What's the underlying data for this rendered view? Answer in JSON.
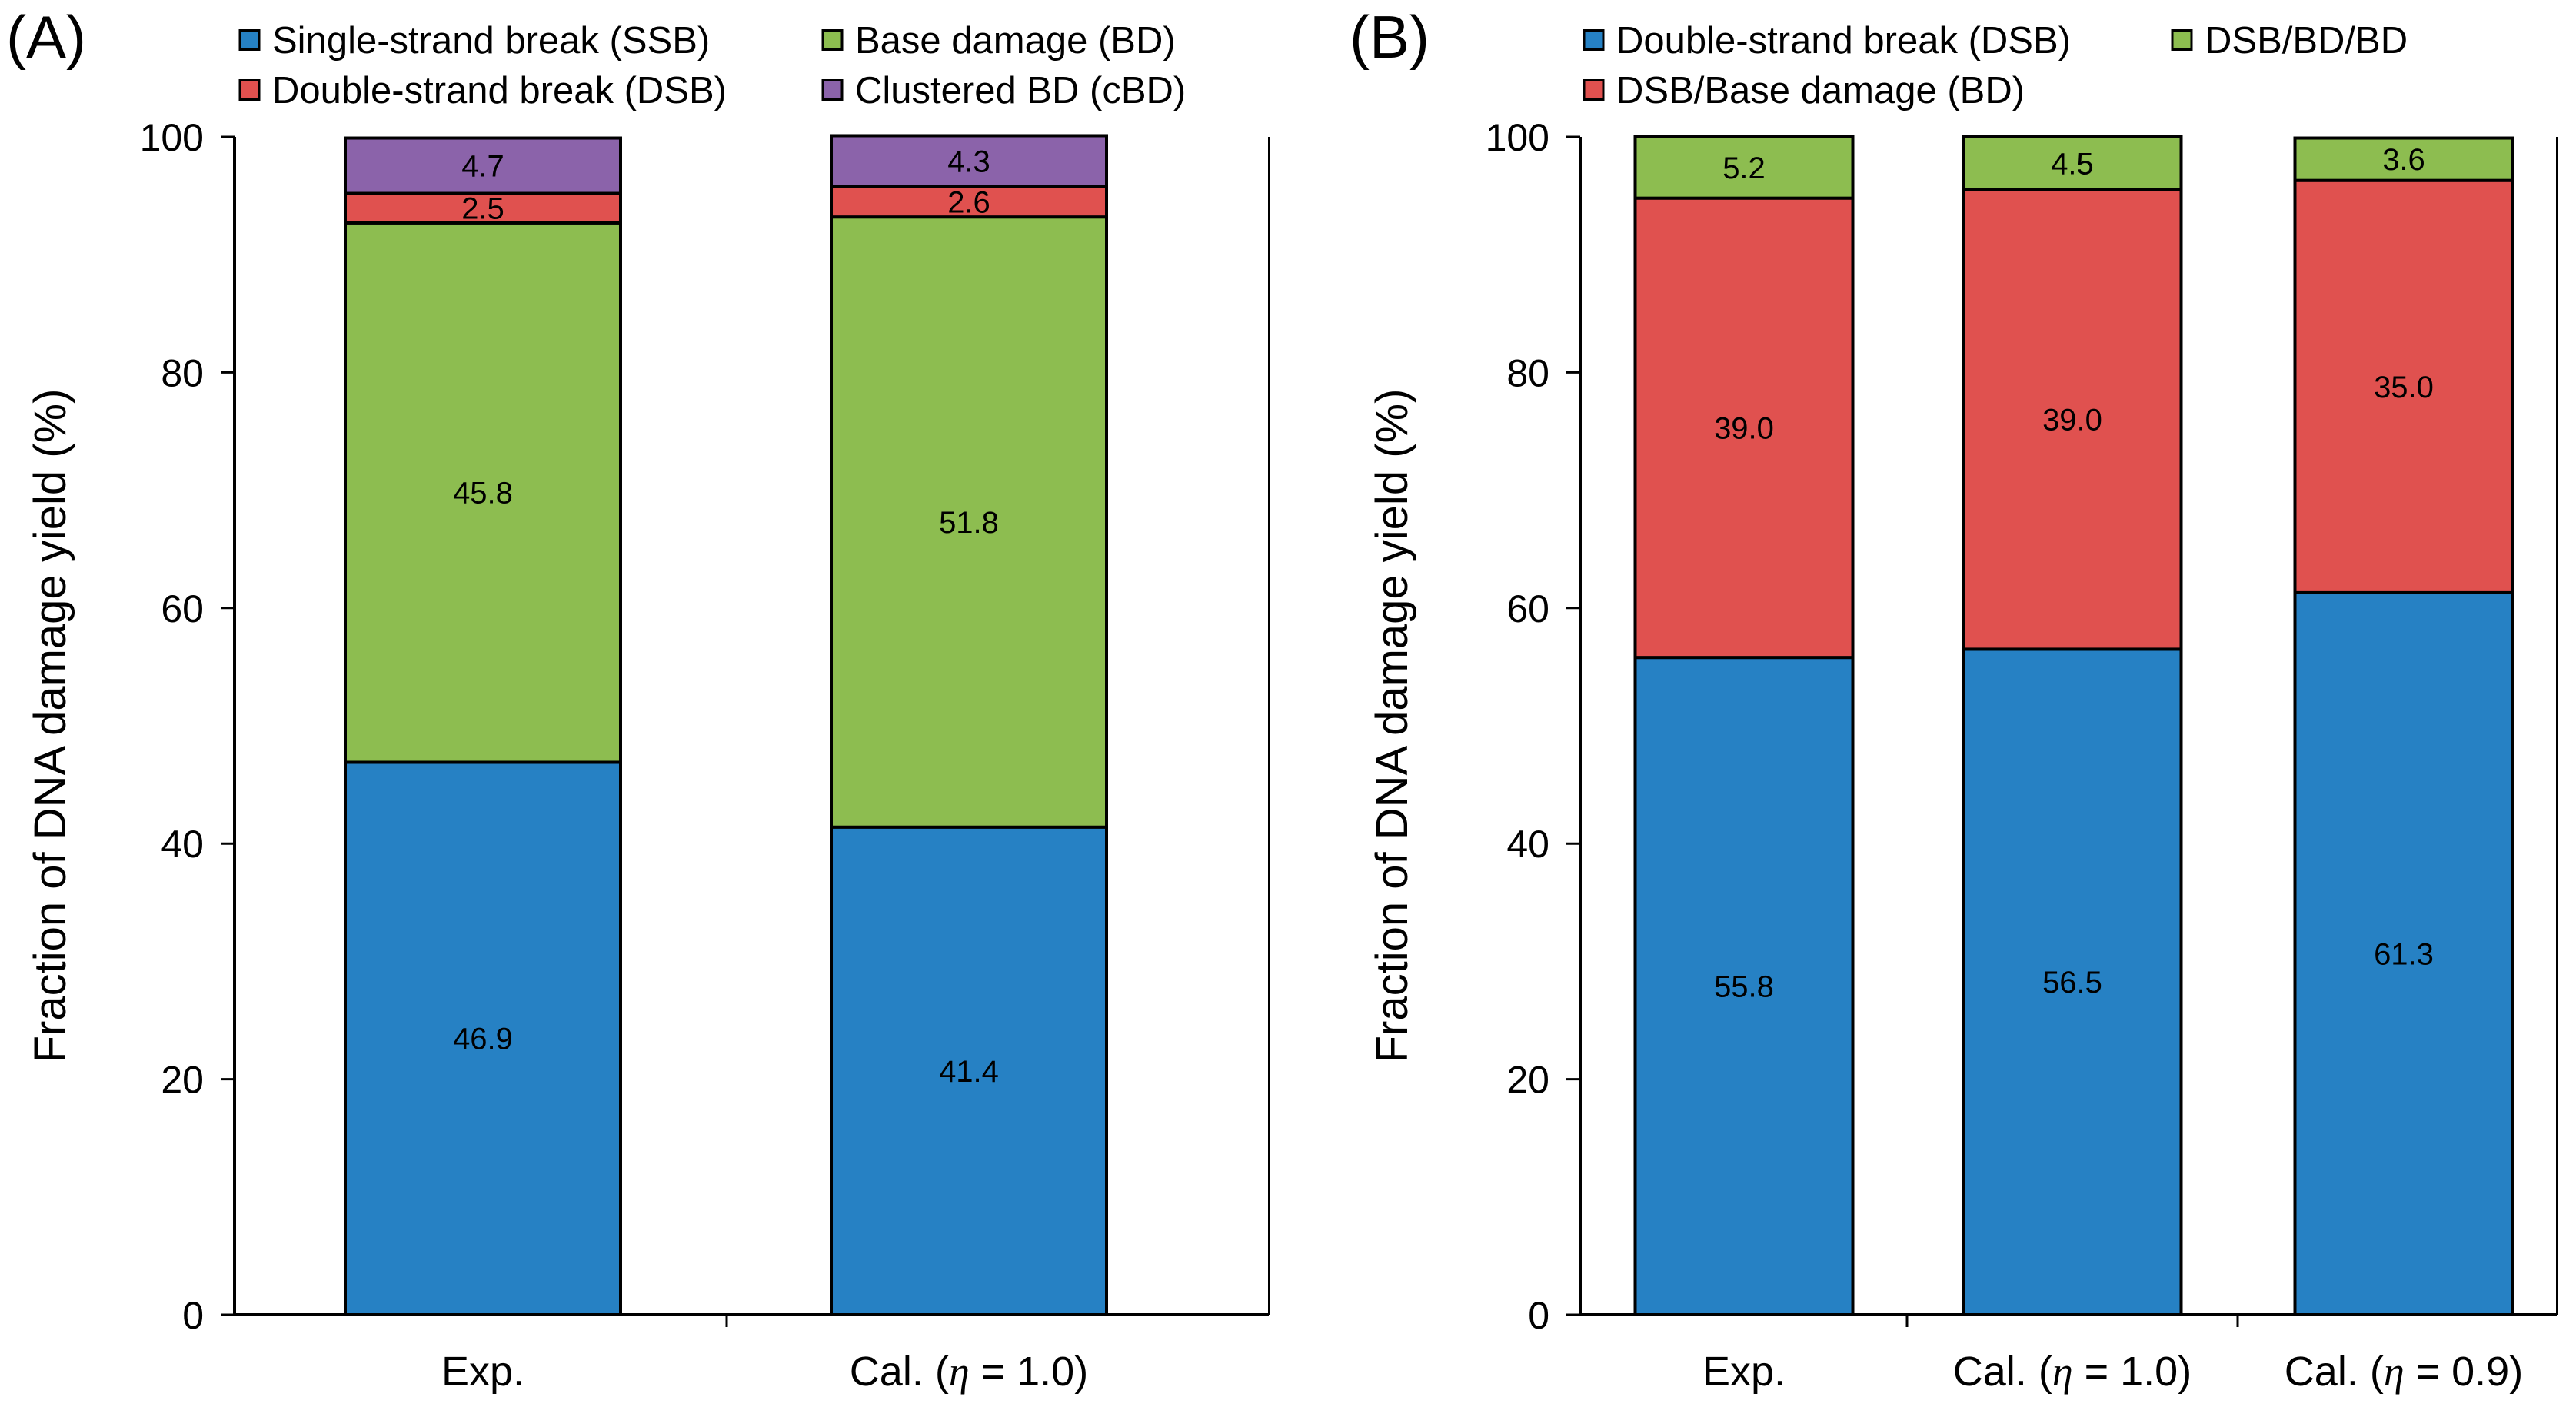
{
  "chart_data": [
    {
      "type": "bar",
      "stacked": true,
      "panel_label": "(A)",
      "ylabel": "Fraction of DNA damage yield (%)",
      "ylim": [
        0,
        100
      ],
      "yticks": [
        0,
        20,
        40,
        60,
        80,
        100
      ],
      "categories": [
        {
          "text": "Exp.",
          "pre": "Exp.",
          "eta": "",
          "post": ""
        },
        {
          "text": "Cal. (η = 1.0)",
          "pre": "Cal. (",
          "eta": "η",
          "post": " = 1.0)"
        }
      ],
      "series": [
        {
          "name": "Single-strand break (SSB)",
          "color": "#2681c4",
          "values": [
            46.9,
            41.4
          ],
          "labels": [
            "46.9",
            "41.4"
          ]
        },
        {
          "name": "Base damage (BD)",
          "color": "#8dbd50",
          "values": [
            45.8,
            51.8
          ],
          "labels": [
            "45.8",
            "51.8"
          ]
        },
        {
          "name": "Double-strand break (DSB)",
          "color": "#e0514f",
          "values": [
            2.5,
            2.6
          ],
          "labels": [
            "2.5",
            "2.6"
          ]
        },
        {
          "name": "Clustered BD (cBD)",
          "color": "#8b63aa",
          "values": [
            4.7,
            4.3
          ],
          "labels": [
            "4.7",
            "4.3"
          ]
        }
      ],
      "legend_rows": [
        [
          "Single-strand break (SSB)",
          "Base damage (BD)"
        ],
        [
          "Double-strand break (DSB)",
          "Clustered BD (cBD)"
        ]
      ]
    },
    {
      "type": "bar",
      "stacked": true,
      "panel_label": "(B)",
      "ylabel": "Fraction of DNA damage yield (%)",
      "ylim": [
        0,
        100
      ],
      "yticks": [
        0,
        20,
        40,
        60,
        80,
        100
      ],
      "categories": [
        {
          "text": "Exp.",
          "pre": "Exp.",
          "eta": "",
          "post": ""
        },
        {
          "text": "Cal. (η = 1.0)",
          "pre": "Cal. (",
          "eta": "η",
          "post": " = 1.0)"
        },
        {
          "text": "Cal. (η = 0.9)",
          "pre": "Cal. (",
          "eta": "η",
          "post": " = 0.9)"
        }
      ],
      "series": [
        {
          "name": "Double-strand break (DSB)",
          "color": "#2681c4",
          "values": [
            55.8,
            56.5,
            61.3
          ],
          "labels": [
            "55.8",
            "56.5",
            "61.3"
          ]
        },
        {
          "name": "DSB/Base damage (BD)",
          "color": "#e0514f",
          "values": [
            39.0,
            39.0,
            35.0
          ],
          "labels": [
            "39.0",
            "39.0",
            "35.0"
          ]
        },
        {
          "name": "DSB/BD/BD",
          "color": "#8dbd50",
          "values": [
            5.2,
            4.5,
            3.6
          ],
          "labels": [
            "5.2",
            "4.5",
            "3.6"
          ]
        }
      ],
      "legend_rows": [
        [
          "Double-strand break (DSB)",
          "DSB/BD/BD"
        ],
        [
          "DSB/Base damage (BD)"
        ]
      ]
    }
  ]
}
